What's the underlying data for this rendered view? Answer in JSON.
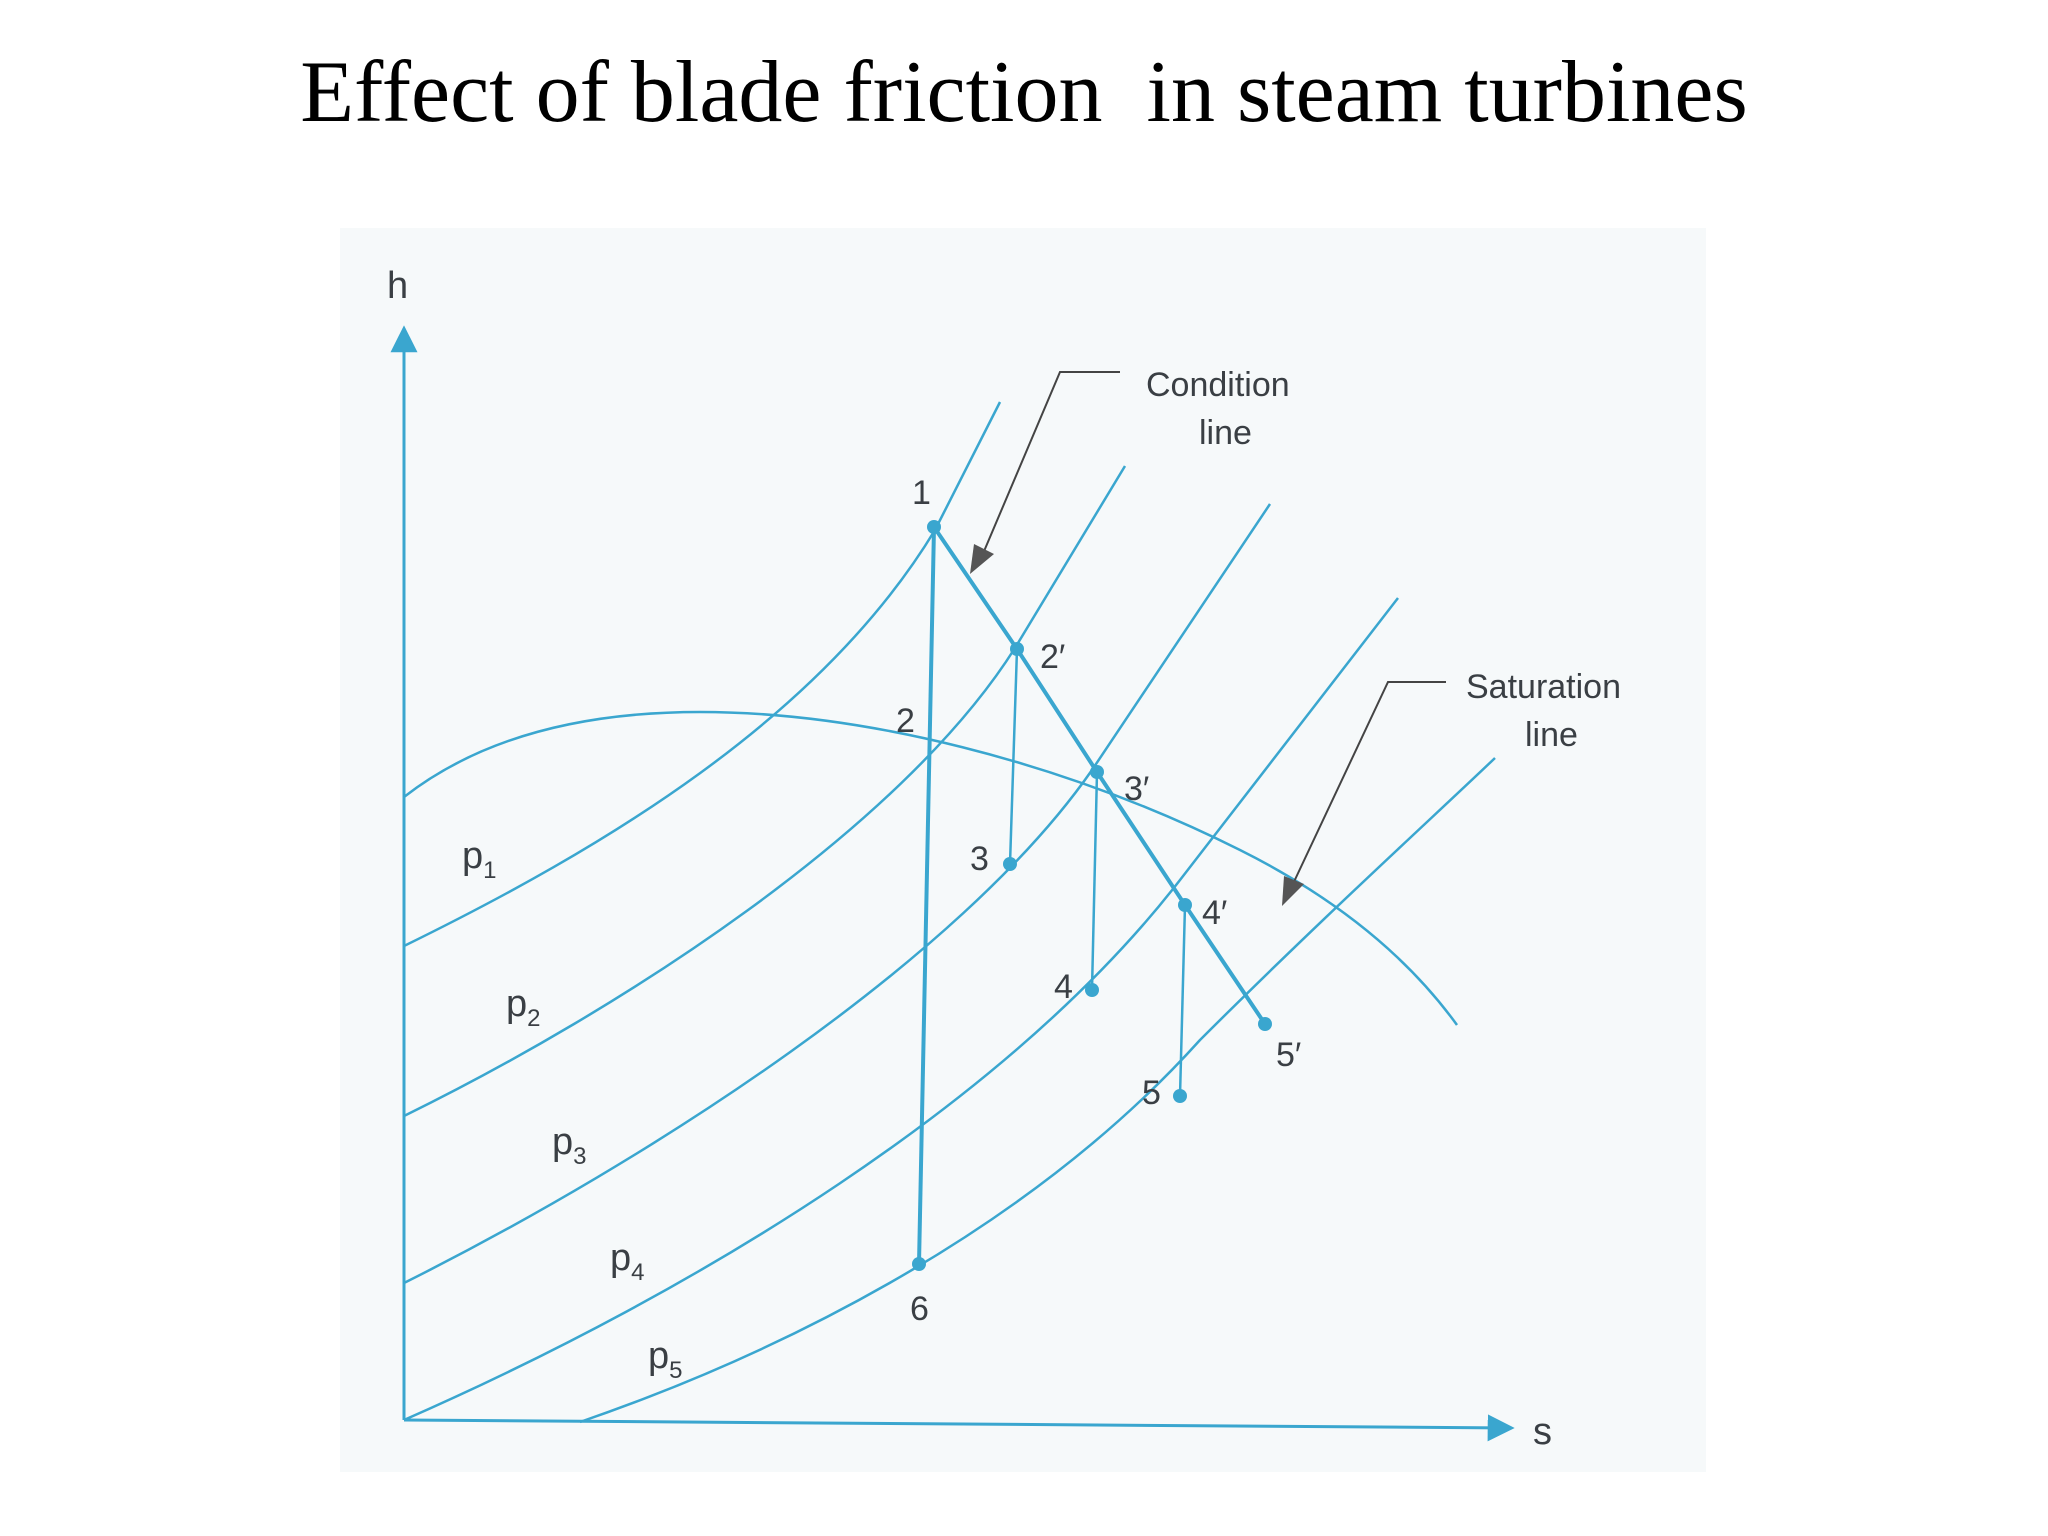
{
  "title": "Effect of blade friction  in steam turbines",
  "axes": {
    "y_label": "h",
    "x_label": "s"
  },
  "pressure_lines": [
    {
      "base": "p",
      "sub": "1"
    },
    {
      "base": "p",
      "sub": "2"
    },
    {
      "base": "p",
      "sub": "3"
    },
    {
      "base": "p",
      "sub": "4"
    },
    {
      "base": "p",
      "sub": "5"
    }
  ],
  "state_points": {
    "p1": "1",
    "p2": "2",
    "p3": "3",
    "p4": "4",
    "p5": "5",
    "p6": "6",
    "p2p": "2′",
    "p3p": "3′",
    "p4p": "4′",
    "p5p": "5′"
  },
  "annotations": {
    "condition_line": {
      "line1": "Condition",
      "line2": "line"
    },
    "saturation_line": {
      "line1": "Saturation",
      "line2": "line"
    }
  },
  "colors": {
    "line": "#3aa6cf",
    "point": "#3aa6cf",
    "text": "#3a3f44",
    "arrow": "#444444"
  }
}
